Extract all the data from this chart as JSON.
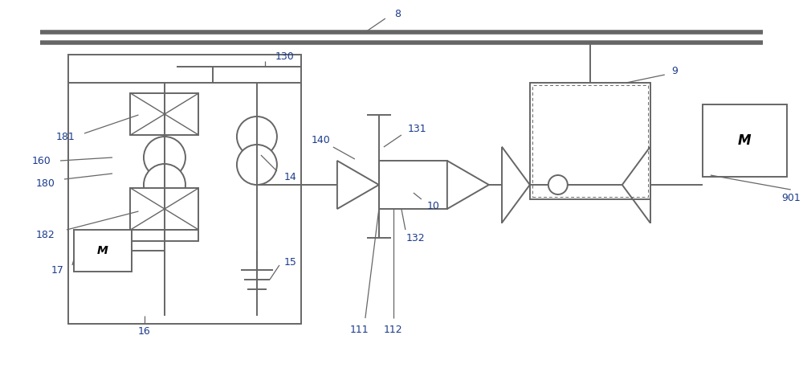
{
  "line_color": "#666666",
  "text_color": "#1a3a8a",
  "lw": 1.4,
  "fig_width": 10.0,
  "fig_height": 4.58
}
